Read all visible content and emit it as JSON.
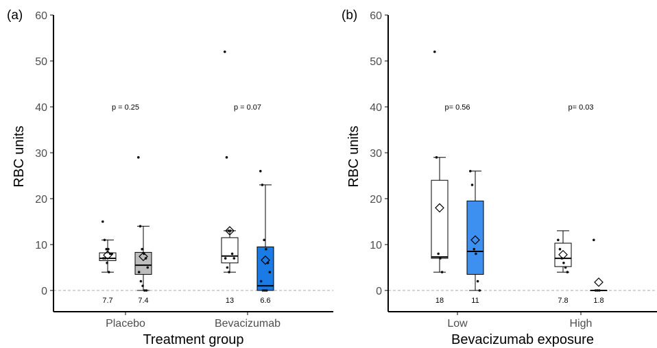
{
  "chart_data": [
    {
      "type": "box",
      "panel_label": "(a)",
      "xlabel": "Treatment group",
      "ylabel": "RBC units",
      "ylim": [
        0,
        60
      ],
      "yticks": [
        0,
        10,
        20,
        30,
        40,
        50,
        60
      ],
      "reference_line": 0,
      "categories": [
        "Placebo",
        "Bevacizumab"
      ],
      "groups": [
        {
          "category": "Placebo",
          "p_value": "p = 0.25",
          "boxes": [
            {
              "fill": "#ffffff",
              "q1": 6.5,
              "median": 7.0,
              "q3": 8.2,
              "whisker_low": 4,
              "whisker_high": 11,
              "mean": 7.7,
              "mean_label": "7.7",
              "points": [
                15,
                11,
                9,
                9,
                8,
                8,
                7,
                7,
                6,
                4
              ]
            },
            {
              "fill": "#bdbdbd",
              "q1": 3.5,
              "median": 5.5,
              "q3": 8.3,
              "whisker_low": 0,
              "whisker_high": 14,
              "mean": 7.4,
              "mean_label": "7.4",
              "points": [
                29,
                14,
                9,
                8,
                7,
                5,
                4,
                2,
                1,
                0,
                0
              ]
            }
          ]
        },
        {
          "category": "Bevacizumab",
          "p_value": "p = 0.07",
          "boxes": [
            {
              "fill": "#ffffff",
              "q1": 6.0,
              "median": 7.5,
              "q3": 11.5,
              "whisker_low": 4,
              "whisker_high": 13,
              "mean": 13,
              "mean_label": "13",
              "points": [
                52,
                29,
                13,
                13,
                8,
                7,
                7,
                5,
                4
              ]
            },
            {
              "fill": "#1a7ae6",
              "q1": 0,
              "median": 1.0,
              "q3": 9.5,
              "whisker_low": 0,
              "whisker_high": 23,
              "mean": 6.6,
              "mean_label": "6.6",
              "points": [
                26,
                23,
                11,
                9,
                6,
                4,
                2,
                0,
                0,
                0
              ]
            }
          ]
        }
      ]
    },
    {
      "type": "box",
      "panel_label": "(b)",
      "xlabel": "Bevacizumab exposure",
      "ylabel": "RBC units",
      "ylim": [
        0,
        60
      ],
      "yticks": [
        0,
        10,
        20,
        30,
        40,
        50,
        60
      ],
      "reference_line": 0,
      "categories": [
        "Low",
        "High"
      ],
      "groups": [
        {
          "category": "Low",
          "p_value": "p= 0.56",
          "boxes": [
            {
              "fill": "#ffffff",
              "q1": 7.0,
              "median": 7.3,
              "q3": 24.0,
              "whisker_low": 4,
              "whisker_high": 29,
              "mean": 18,
              "mean_label": "18",
              "points": [
                52,
                29,
                8,
                7,
                4
              ]
            },
            {
              "fill": "#3d8ff0",
              "q1": 3.5,
              "median": 8.5,
              "q3": 19.5,
              "whisker_low": 0,
              "whisker_high": 26,
              "mean": 11,
              "mean_label": "11",
              "points": [
                26,
                23,
                9,
                8,
                2,
                0
              ]
            }
          ]
        },
        {
          "category": "High",
          "p_value": "p= 0.03",
          "boxes": [
            {
              "fill": "#ffffff",
              "q1": 5.2,
              "median": 7.0,
              "q3": 10.3,
              "whisker_low": 4,
              "whisker_high": 13,
              "mean": 7.8,
              "mean_label": "7.8",
              "points": [
                11,
                9,
                7,
                6,
                5,
                4
              ]
            },
            {
              "fill": "#1a7ae6",
              "q1": 0,
              "median": 0,
              "q3": 0,
              "whisker_low": 0,
              "whisker_high": 0,
              "mean": 1.8,
              "mean_label": "1.8",
              "points": [
                11,
                0,
                0,
                0
              ]
            }
          ]
        }
      ]
    }
  ]
}
